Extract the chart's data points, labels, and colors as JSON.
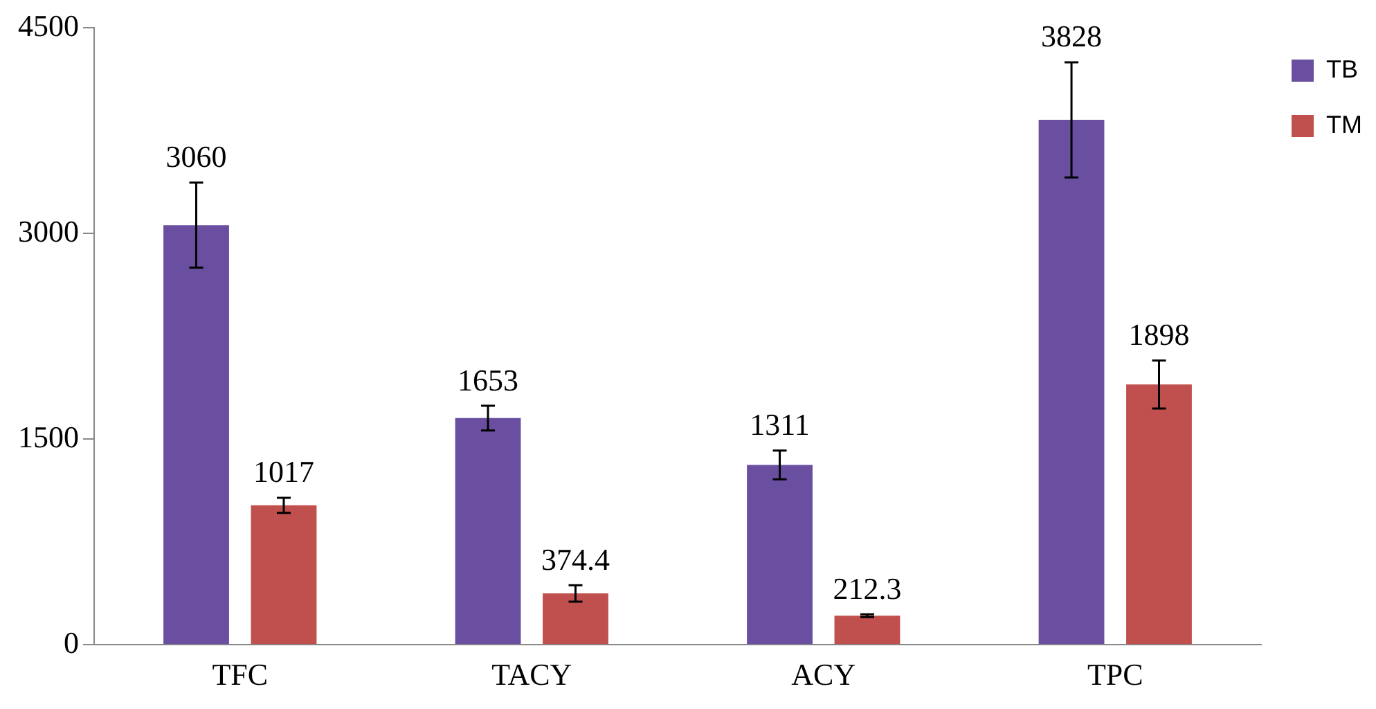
{
  "chart_data": {
    "type": "bar",
    "categories": [
      "TFC",
      "TACY",
      "ACY",
      "TPC"
    ],
    "series": [
      {
        "name": "TB",
        "color": "#6a4fa0",
        "values": [
          3060,
          1653,
          1311,
          3828
        ],
        "errors": [
          310,
          90,
          105,
          420
        ]
      },
      {
        "name": "TM",
        "color": "#c0504d",
        "values": [
          1017,
          374.4,
          212.3,
          1898
        ],
        "errors": [
          55,
          60,
          10,
          175
        ]
      }
    ],
    "ylim": [
      0,
      4500
    ],
    "yticks": [
      0,
      1500,
      3000,
      4500
    ],
    "grid": false,
    "legend": "top right",
    "data_labels": true
  }
}
